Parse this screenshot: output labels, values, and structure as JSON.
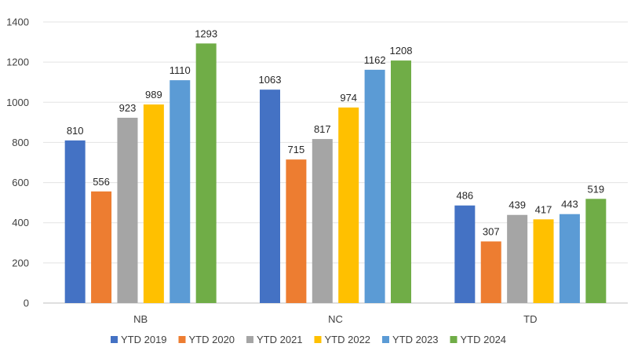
{
  "chart_data": {
    "type": "bar",
    "title": "",
    "xlabel": "",
    "ylabel": "",
    "categories": [
      "NB",
      "NC",
      "TD"
    ],
    "ylim": [
      0,
      1400
    ],
    "yticks": [
      0,
      200,
      400,
      600,
      800,
      1000,
      1200,
      1400
    ],
    "grid": true,
    "legend_position": "bottom",
    "series": [
      {
        "name": "YTD 2019",
        "color": "#4472C4",
        "values": [
          810,
          1063,
          486
        ]
      },
      {
        "name": "YTD 2020",
        "color": "#ED7D31",
        "values": [
          556,
          715,
          307
        ]
      },
      {
        "name": "YTD 2021",
        "color": "#A5A5A5",
        "values": [
          923,
          817,
          439
        ]
      },
      {
        "name": "YTD 2022",
        "color": "#FFC000",
        "values": [
          989,
          974,
          417
        ]
      },
      {
        "name": "YTD 2023",
        "color": "#5B9BD5",
        "values": [
          1110,
          1162,
          443
        ]
      },
      {
        "name": "YTD 2024",
        "color": "#70AD47",
        "values": [
          1293,
          1208,
          519
        ]
      }
    ]
  }
}
